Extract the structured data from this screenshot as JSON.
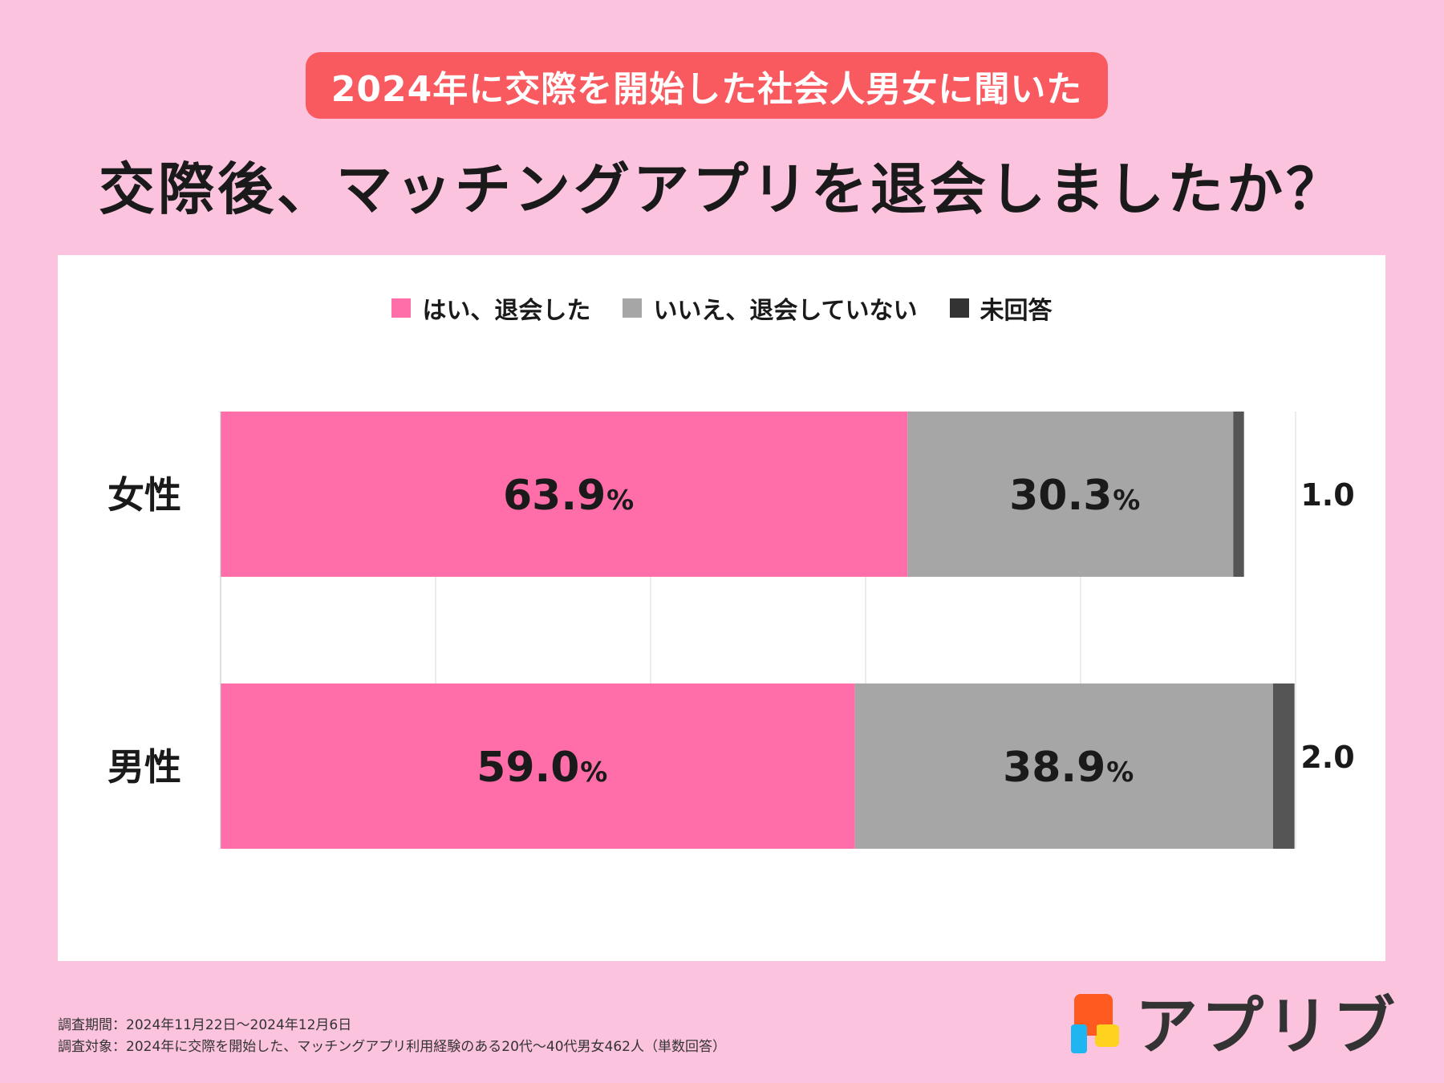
{
  "header": {
    "badge": "2024年に交際を開始した社会人男女に聞いた",
    "title": "交際後、マッチングアプリを退会しましたか？"
  },
  "footer": {
    "period": "調査期間：2024年11月22日〜2024年12月6日",
    "target": "調査対象：2024年に交際を開始した、マッチングアプリ利用経験のある20代〜40代男女462人（単数回答）"
  },
  "logo": {
    "text": "アプリブ"
  },
  "chart_data": {
    "type": "bar",
    "orientation": "horizontal",
    "stacked": true,
    "title": "交際後、マッチングアプリを退会しましたか？",
    "categories": [
      "女性",
      "男性"
    ],
    "series": [
      {
        "name": "はい、退会した",
        "values": [
          63.9,
          59.0
        ],
        "color": "#ff6ea9",
        "labels": [
          "63.9",
          "59.0"
        ]
      },
      {
        "name": "いいえ、退会していない",
        "values": [
          30.3,
          38.9
        ],
        "color": "#a6a6a6",
        "labels": [
          "30.3",
          "38.9"
        ]
      },
      {
        "name": "未回答",
        "values": [
          1.0,
          2.0
        ],
        "color": "#555555",
        "labels": [
          "1.0",
          "2.0"
        ]
      }
    ],
    "unit_symbol": "%",
    "xlim": [
      0,
      100
    ],
    "gridlines": [
      0,
      20,
      40,
      60,
      80,
      100
    ],
    "legend": "top-center"
  }
}
